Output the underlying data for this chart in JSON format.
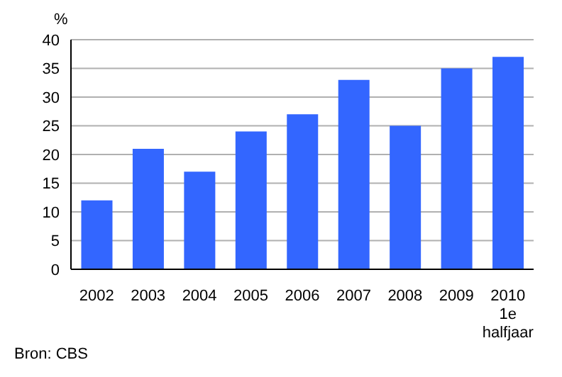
{
  "chart_data": {
    "type": "bar",
    "ylabel": "%",
    "categories": [
      "2002",
      "2003",
      "2004",
      "2005",
      "2006",
      "2007",
      "2008",
      "2009",
      "2010\n1e\nhalfjaar"
    ],
    "values": [
      12,
      21,
      17,
      24,
      27,
      33,
      25,
      35,
      37
    ],
    "color": "#3366ff",
    "ylim": [
      0,
      40
    ],
    "yticks": [
      0,
      5,
      10,
      15,
      20,
      25,
      30,
      35,
      40
    ],
    "grid": "y",
    "annotations": [
      "Bron: CBS"
    ]
  }
}
